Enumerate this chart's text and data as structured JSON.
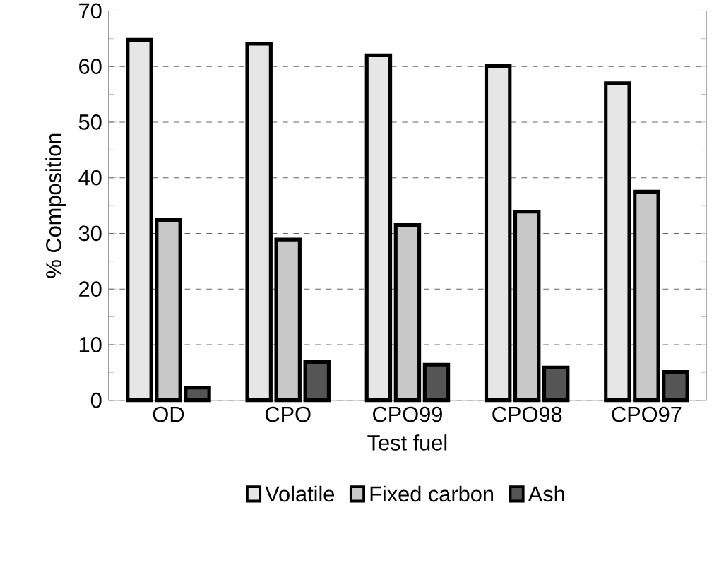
{
  "chart_data": {
    "type": "bar",
    "xlabel": "Test fuel",
    "ylabel": "% Composition",
    "categories": [
      "OD",
      "CPO",
      "CPO99",
      "CPO98",
      "CPO97"
    ],
    "series": [
      {
        "name": "Volatile",
        "color": "#e6e6e6",
        "values": [
          64.8,
          64.1,
          62.0,
          60.1,
          57.0
        ]
      },
      {
        "name": "Fixed carbon",
        "color": "#c8c8c8",
        "values": [
          32.4,
          28.9,
          31.5,
          33.9,
          37.5
        ]
      },
      {
        "name": "Ash",
        "color": "#555555",
        "values": [
          2.3,
          6.9,
          6.4,
          5.9,
          5.1
        ]
      }
    ],
    "ylim": [
      0,
      70
    ],
    "yticks": [
      0,
      10,
      20,
      30,
      40,
      50,
      60,
      70
    ],
    "grid": "y",
    "legend": "bottom"
  }
}
